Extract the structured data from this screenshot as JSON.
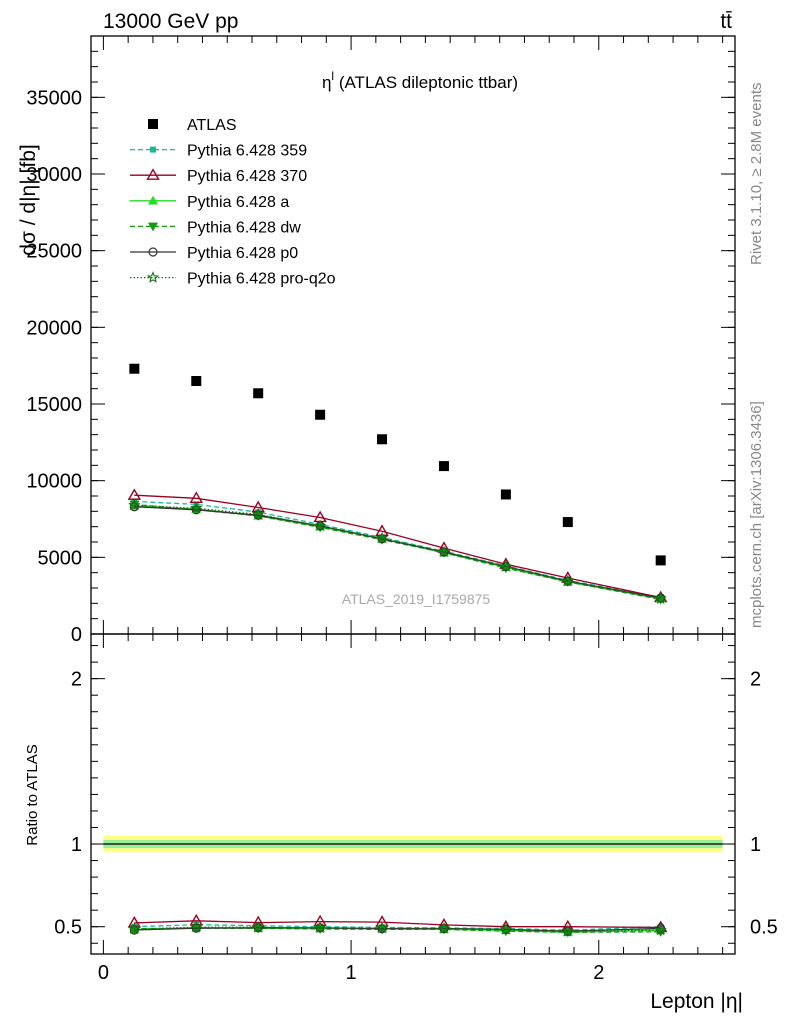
{
  "header": {
    "energy": "13000 GeV pp",
    "process": "tt̄"
  },
  "side_labels": {
    "rivet": "Rivet 3.1.10, ≥ 2.8M events",
    "mcplots": "mcplots.cern.ch [arXiv:1306.3436]"
  },
  "chart_data": [
    {
      "type": "scatter",
      "panel": "main",
      "title": "η",
      "title_superscript": "l",
      "title_rest": " (ATLAS dileptonic ttbar)",
      "watermark": "ATLAS_2019_I1759875",
      "ylabel": "dσ / d|η| [fb]",
      "xlim": [
        -0.05,
        2.55
      ],
      "ylim": [
        0,
        39000
      ],
      "yticks": [
        0,
        5000,
        10000,
        15000,
        20000,
        25000,
        30000,
        35000
      ],
      "ytick_labels": [
        "0",
        "5000",
        "10000",
        "15000",
        "20000",
        "25000",
        "30000",
        "35000"
      ],
      "grid": false,
      "legend_position": "top-left",
      "x": [
        0.125,
        0.375,
        0.625,
        0.875,
        1.125,
        1.375,
        1.625,
        1.875,
        2.25
      ],
      "series": [
        {
          "name": "ATLAS",
          "marker": "square",
          "color": "#000000",
          "values": [
            17300,
            16500,
            15700,
            14300,
            12700,
            10950,
            9100,
            7300,
            4800
          ]
        },
        {
          "name": "Pythia 6.428 359",
          "marker": "small-square",
          "line": "dashed",
          "color": "#1cb898",
          "values": [
            8650,
            8450,
            7950,
            7150,
            6300,
            5400,
            4450,
            3500,
            2400
          ]
        },
        {
          "name": "Pythia 6.428 370",
          "marker": "open-triangle",
          "line": "solid",
          "color": "#990022",
          "values": [
            9050,
            8850,
            8250,
            7600,
            6700,
            5600,
            4550,
            3650,
            2380
          ]
        },
        {
          "name": "Pythia 6.428 a",
          "marker": "triangle",
          "line": "solid",
          "color": "#22dd22",
          "values": [
            8350,
            8150,
            7700,
            7000,
            6200,
            5300,
            4350,
            3400,
            2300
          ]
        },
        {
          "name": "Pythia 6.428 dw",
          "marker": "triangle-down",
          "line": "dashed",
          "color": "#119911",
          "values": [
            8450,
            8100,
            7700,
            6950,
            6150,
            5300,
            4300,
            3400,
            2250
          ]
        },
        {
          "name": "Pythia 6.428 p0",
          "marker": "open-circle",
          "line": "solid",
          "color": "#333333",
          "values": [
            8300,
            8100,
            7750,
            7050,
            6200,
            5350,
            4400,
            3450,
            2350
          ]
        },
        {
          "name": "Pythia 6.428 pro-q2o",
          "marker": "star",
          "line": "dotted",
          "color": "#117711",
          "values": [
            8400,
            8200,
            7800,
            7050,
            6250,
            5350,
            4400,
            3450,
            2300
          ]
        }
      ]
    },
    {
      "type": "line",
      "panel": "ratio",
      "ylabel": "Ratio to ATLAS",
      "xlabel": "Lepton |η|",
      "xlim": [
        -0.05,
        2.55
      ],
      "ylim": [
        0.335,
        2.27
      ],
      "yticks": [
        0.5,
        1,
        2
      ],
      "ytick_labels": [
        "0.5",
        "1",
        "2"
      ],
      "xticks": [
        0,
        1,
        2
      ],
      "xtick_labels": [
        "0",
        "1",
        "2"
      ],
      "reference_line": 1,
      "uncertainty_bands": [
        {
          "level": "outer",
          "color": "#ffff88",
          "halfwidth": [
            0.05,
            0.05,
            0.05,
            0.05,
            0.05,
            0.05,
            0.05,
            0.05,
            0.05
          ]
        },
        {
          "level": "inner",
          "color": "#99ee99",
          "halfwidth": [
            0.025,
            0.025,
            0.025,
            0.025,
            0.025,
            0.025,
            0.025,
            0.025,
            0.025
          ]
        }
      ],
      "x": [
        0.125,
        0.375,
        0.625,
        0.875,
        1.125,
        1.375,
        1.625,
        1.875,
        2.25
      ],
      "series": [
        {
          "name": "Pythia 6.428 359",
          "values": [
            0.5,
            0.512,
            0.506,
            0.5,
            0.496,
            0.493,
            0.489,
            0.479,
            0.5
          ]
        },
        {
          "name": "Pythia 6.428 370",
          "values": [
            0.523,
            0.536,
            0.525,
            0.531,
            0.528,
            0.511,
            0.5,
            0.5,
            0.496
          ]
        },
        {
          "name": "Pythia 6.428 a",
          "values": [
            0.483,
            0.494,
            0.49,
            0.49,
            0.488,
            0.484,
            0.478,
            0.466,
            0.479
          ]
        },
        {
          "name": "Pythia 6.428 dw",
          "values": [
            0.488,
            0.491,
            0.49,
            0.486,
            0.484,
            0.484,
            0.473,
            0.466,
            0.469
          ]
        },
        {
          "name": "Pythia 6.428 p0",
          "values": [
            0.48,
            0.491,
            0.494,
            0.493,
            0.488,
            0.489,
            0.484,
            0.473,
            0.49
          ]
        },
        {
          "name": "Pythia 6.428 pro-q2o",
          "values": [
            0.486,
            0.497,
            0.497,
            0.493,
            0.492,
            0.489,
            0.484,
            0.473,
            0.479
          ]
        }
      ]
    }
  ]
}
